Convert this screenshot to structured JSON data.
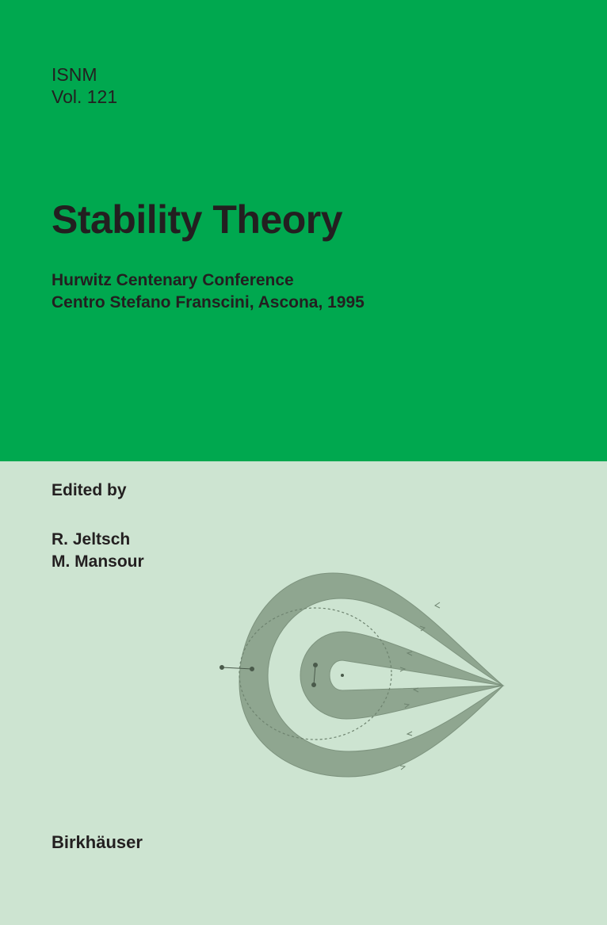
{
  "series": {
    "name": "ISNM",
    "volume": "Vol. 121"
  },
  "title": "Stability Theory",
  "subtitle": [
    "Hurwitz Centenary Conference",
    "Centro Stefano Franscini, Ascona, 1995"
  ],
  "edited_by_label": "Edited by",
  "editors": [
    "R. Jeltsch",
    "M. Mansour"
  ],
  "publisher": "Birkhäuser",
  "colors": {
    "top_band": "#00a84f",
    "bottom_band": "#cde4d1",
    "figure_fill": "#8fa690",
    "text": "#231f20"
  }
}
